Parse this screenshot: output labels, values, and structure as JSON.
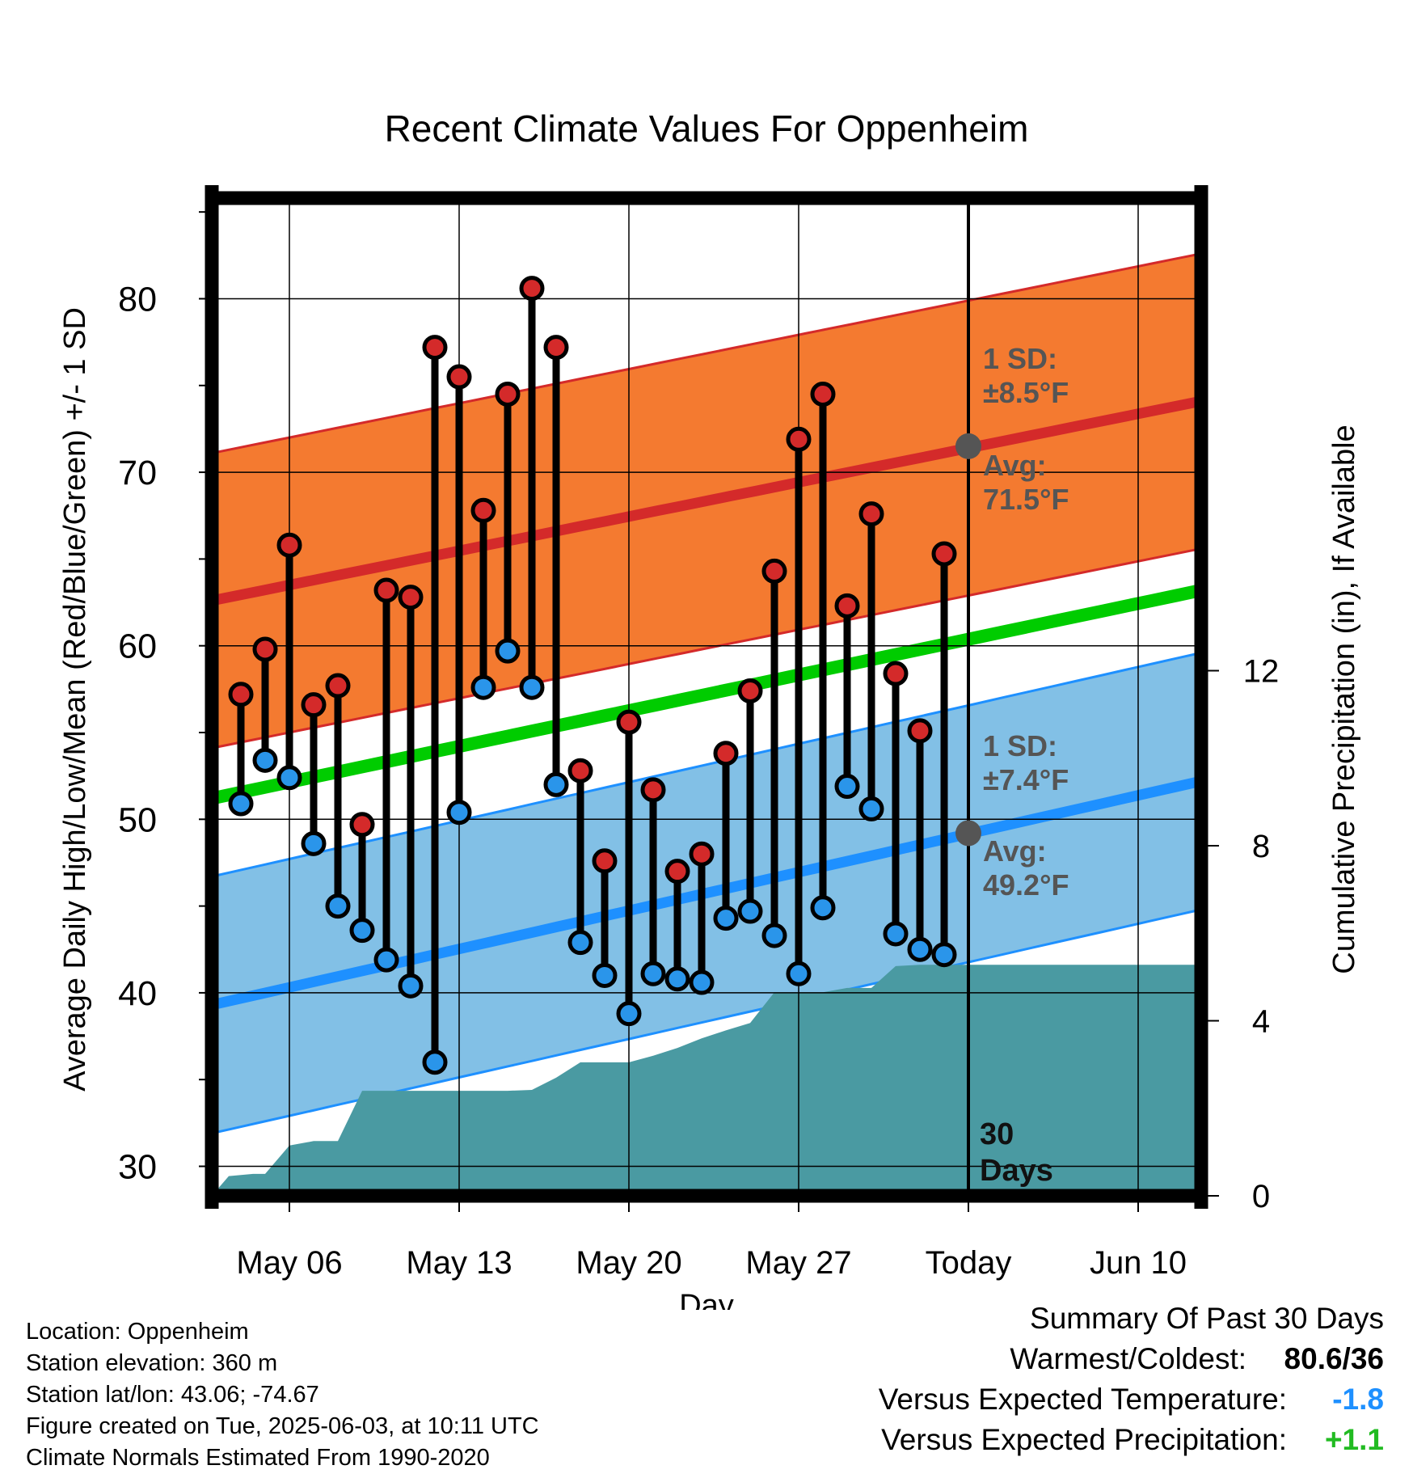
{
  "chart_data": {
    "type": "line",
    "title": "Recent Climate Values For Oppenheim",
    "xlabel": "Day",
    "ylabel": "Average Daily High/Low/Mean (Red/Blue/Green) +/- 1 SD",
    "y2label": "Cumulative Precipitation (in), If Available",
    "ylim": [
      28.3,
      85.8
    ],
    "y2lim": [
      0,
      22.8
    ],
    "yticks": [
      "30",
      "40",
      "50",
      "60",
      "70",
      "80"
    ],
    "y2ticks": [
      "0",
      "4",
      "8",
      "12"
    ],
    "x_tick_labels": [
      {
        "day": 6,
        "label": "May 06"
      },
      {
        "day": 13,
        "label": "May 13"
      },
      {
        "day": 20,
        "label": "May 20"
      },
      {
        "day": 27,
        "label": "May 27"
      },
      {
        "day": 34,
        "label": "Today"
      },
      {
        "day": 41,
        "label": "Jun 10"
      }
    ],
    "xlim": [
      2.8,
      43.6
    ],
    "today_day": 34,
    "today_label": [
      "30",
      "Days"
    ],
    "days": [
      4,
      5,
      6,
      7,
      8,
      9,
      10,
      11,
      12,
      13,
      14,
      15,
      16,
      17,
      18,
      19,
      20,
      21,
      22,
      23,
      24,
      25,
      26,
      27,
      28,
      29,
      30,
      31,
      32,
      33
    ],
    "highs": [
      57.2,
      59.8,
      65.8,
      56.6,
      57.7,
      49.7,
      63.2,
      62.8,
      77.2,
      75.5,
      67.8,
      74.5,
      80.6,
      77.2,
      52.8,
      47.6,
      55.6,
      51.7,
      47.0,
      48.0,
      53.8,
      57.4,
      64.3,
      71.9,
      74.5,
      62.3,
      67.6,
      58.4,
      55.1,
      65.3
    ],
    "lows": [
      50.9,
      53.4,
      52.4,
      48.6,
      45.0,
      43.6,
      41.9,
      40.4,
      36.0,
      50.4,
      57.6,
      59.7,
      57.6,
      52.0,
      42.9,
      41.0,
      38.8,
      41.1,
      40.8,
      40.6,
      44.3,
      44.7,
      43.3,
      41.1,
      44.9,
      51.9,
      50.6,
      43.4,
      42.5,
      42.2
    ],
    "normal_high": {
      "start": 62.6,
      "end": 74.1,
      "sd": 8.5
    },
    "normal_low": {
      "start": 39.3,
      "end": 52.2,
      "sd": 7.4
    },
    "normal_mean": {
      "start": 51.2,
      "end": 63.2
    },
    "precip_cumulative": [
      [
        2.8,
        0
      ],
      [
        3.5,
        0.45
      ],
      [
        4.5,
        0.5
      ],
      [
        5,
        0.5
      ],
      [
        6,
        1.15
      ],
      [
        7,
        1.25
      ],
      [
        8,
        1.25
      ],
      [
        9,
        2.4
      ],
      [
        10,
        2.4
      ],
      [
        11,
        2.4
      ],
      [
        12,
        2.4
      ],
      [
        13,
        2.4
      ],
      [
        14,
        2.4
      ],
      [
        15,
        2.4
      ],
      [
        16,
        2.42
      ],
      [
        17,
        2.7
      ],
      [
        18,
        3.05
      ],
      [
        19,
        3.05
      ],
      [
        20,
        3.05
      ],
      [
        21,
        3.2
      ],
      [
        22,
        3.38
      ],
      [
        23,
        3.6
      ],
      [
        24,
        3.78
      ],
      [
        25,
        3.95
      ],
      [
        26,
        4.65
      ],
      [
        27,
        4.65
      ],
      [
        28,
        4.65
      ],
      [
        29,
        4.75
      ],
      [
        30,
        4.75
      ],
      [
        31,
        5.25
      ],
      [
        32,
        5.28
      ],
      [
        33,
        5.28
      ],
      [
        34,
        5.28
      ],
      [
        43.6,
        5.28
      ]
    ],
    "annotations": {
      "high_sd": [
        "1 SD:",
        "±8.5°F"
      ],
      "high_avg": [
        "Avg:",
        "71.5°F"
      ],
      "low_sd": [
        "1 SD:",
        "±7.4°F"
      ],
      "low_avg": [
        "Avg:",
        "49.2°F"
      ],
      "today_high_avg": 71.5,
      "today_low_avg": 49.2
    },
    "colors": {
      "high_band": "#f47a30",
      "high_line": "#d42a2a",
      "low_band": "#82c0e6",
      "low_line": "#1e90ff",
      "mean_line": "#00cc00",
      "precip": "#4a9aa2",
      "high_dot": "#d42a2a",
      "low_dot": "#2a95ea",
      "annotation": "#555555"
    },
    "grid": true
  },
  "footer": {
    "location": "Location: Oppenheim",
    "elevation": "Station elevation: 360 m",
    "latlon": "Station lat/lon: 43.06; -74.67",
    "created": "Figure created on Tue, 2025-06-03, at 10:11 UTC",
    "normals": "Climate Normals Estimated From 1990-2020"
  },
  "summary": {
    "title": "Summary Of Past 30 Days",
    "warmest_label": "Warmest/Coldest:",
    "warmest_value": "80.6/36",
    "temp_label": "Versus Expected Temperature:",
    "temp_value": "-1.8",
    "temp_color": "#1e90ff",
    "precip_label": "Versus Expected Precipitation:",
    "precip_value": "+1.1",
    "precip_color": "#22bb22"
  }
}
